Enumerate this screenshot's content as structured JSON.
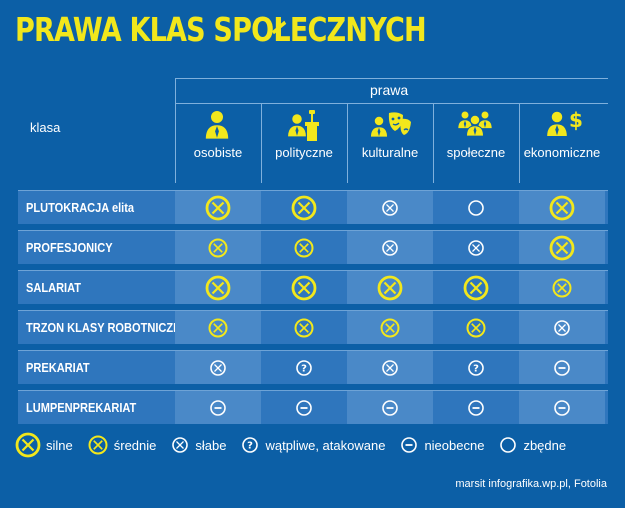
{
  "title": "PRAWA KLAS SPOŁECZNYCH",
  "header": {
    "group_label": "prawa",
    "row_label": "klasa",
    "columns": [
      {
        "label": "osobiste",
        "icon": "person-icon"
      },
      {
        "label": "polityczne",
        "icon": "politician-podium-icon"
      },
      {
        "label": "kulturalne",
        "icon": "theater-masks-icon"
      },
      {
        "label": "społeczne",
        "icon": "group-people-icon"
      },
      {
        "label": "ekonomiczne",
        "icon": "money-person-icon"
      }
    ]
  },
  "rows": [
    {
      "name": "PLUTOKRACJA elita",
      "cells": [
        "silne",
        "silne",
        "slabe",
        "zbedne",
        "silne"
      ]
    },
    {
      "name": "PROFESJONICY",
      "cells": [
        "srednie",
        "srednie",
        "slabe",
        "slabe",
        "silne"
      ]
    },
    {
      "name": "SALARIAT",
      "cells": [
        "silne",
        "silne",
        "silne",
        "silne",
        "srednie"
      ]
    },
    {
      "name": "TRZON KLASY ROBOTNICZEJ",
      "cells": [
        "srednie",
        "srednie",
        "srednie",
        "srednie",
        "slabe"
      ]
    },
    {
      "name": "PREKARIAT",
      "cells": [
        "slabe",
        "watpliwe",
        "slabe",
        "watpliwe",
        "nieobecne"
      ]
    },
    {
      "name": "LUMPENPREKARIAT",
      "cells": [
        "nieobecne",
        "nieobecne",
        "nieobecne",
        "nieobecne",
        "nieobecne"
      ]
    }
  ],
  "legend": [
    {
      "key": "silne",
      "label": "silne"
    },
    {
      "key": "srednie",
      "label": "średnie"
    },
    {
      "key": "slabe",
      "label": "słabe"
    },
    {
      "key": "watpliwe",
      "label": "wątpliwe, atakowane"
    },
    {
      "key": "nieobecne",
      "label": "nieobecne"
    },
    {
      "key": "zbedne",
      "label": "zbędne"
    }
  ],
  "credit": "marsit infografika.wp.pl, Fotolia",
  "colors": {
    "background": "#0c5fa6",
    "accent": "#f2e71c",
    "row": "#2f76bd",
    "row_alt": "#4a89c8"
  }
}
